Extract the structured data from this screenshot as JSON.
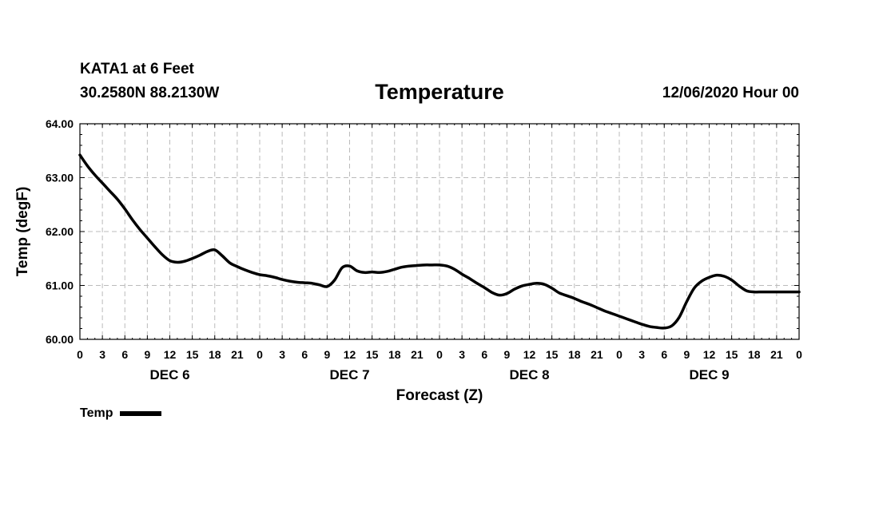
{
  "header": {
    "station": "KATA1 at 6 Feet",
    "coords": "30.2580N 88.2130W",
    "title": "Temperature",
    "run": "12/06/2020 Hour 00"
  },
  "colors": {
    "series": "#000000",
    "grid": "#bbbbbb"
  },
  "chart_data": {
    "type": "line",
    "title": "Temperature",
    "xlabel": "Forecast (Z)",
    "ylabel": "Temp (degF)",
    "ylim": [
      60.0,
      64.0
    ],
    "xlim": [
      0,
      96
    ],
    "x_units": "forecast hours",
    "yticks": [
      "60.00",
      "61.00",
      "62.00",
      "63.00",
      "64.00"
    ],
    "xticks": [
      "0",
      "3",
      "6",
      "9",
      "12",
      "15",
      "18",
      "21",
      "0",
      "3",
      "6",
      "9",
      "12",
      "15",
      "18",
      "21",
      "0",
      "3",
      "6",
      "9",
      "12",
      "15",
      "18",
      "21",
      "0",
      "3",
      "6",
      "9",
      "12",
      "15",
      "18",
      "21",
      "0"
    ],
    "day_labels": [
      {
        "label": "DEC 6",
        "hour": 12
      },
      {
        "label": "DEC 7",
        "hour": 36
      },
      {
        "label": "DEC 8",
        "hour": 60
      },
      {
        "label": "DEC 9",
        "hour": 84
      }
    ],
    "grid": true,
    "legend": "bottom-left",
    "series": [
      {
        "name": "Temp",
        "x": [
          0,
          1,
          2,
          3,
          4,
          5,
          6,
          7,
          8,
          9,
          10,
          11,
          12,
          13,
          14,
          15,
          16,
          17,
          18,
          19,
          20,
          21,
          22,
          23,
          24,
          25,
          26,
          27,
          28,
          29,
          30,
          31,
          32,
          33,
          34,
          35,
          36,
          37,
          38,
          39,
          40,
          41,
          42,
          43,
          44,
          45,
          46,
          47,
          48,
          49,
          50,
          51,
          52,
          53,
          54,
          55,
          56,
          57,
          58,
          59,
          60,
          61,
          62,
          63,
          64,
          65,
          66,
          67,
          68,
          69,
          70,
          71,
          72,
          73,
          74,
          75,
          76,
          77,
          78,
          79,
          80,
          81,
          82,
          83,
          84,
          85,
          86,
          87,
          88,
          89,
          90,
          91,
          92,
          93,
          94,
          95,
          96
        ],
        "values": [
          63.42,
          63.22,
          63.05,
          62.9,
          62.75,
          62.6,
          62.42,
          62.22,
          62.04,
          61.88,
          61.72,
          61.57,
          61.46,
          61.43,
          61.45,
          61.5,
          61.56,
          61.63,
          61.66,
          61.55,
          61.42,
          61.35,
          61.29,
          61.24,
          61.2,
          61.18,
          61.15,
          61.11,
          61.08,
          61.06,
          61.05,
          61.04,
          61.01,
          60.98,
          61.1,
          61.33,
          61.36,
          61.27,
          61.24,
          61.25,
          61.24,
          61.26,
          61.3,
          61.34,
          61.36,
          61.37,
          61.38,
          61.38,
          61.38,
          61.36,
          61.3,
          61.21,
          61.13,
          61.04,
          60.96,
          60.87,
          60.82,
          60.85,
          60.93,
          60.99,
          61.02,
          61.04,
          61.02,
          60.95,
          60.86,
          60.81,
          60.76,
          60.7,
          60.65,
          60.59,
          60.53,
          60.48,
          60.43,
          60.38,
          60.33,
          60.28,
          60.24,
          60.22,
          60.21,
          60.25,
          60.41,
          60.7,
          60.95,
          61.08,
          61.15,
          61.19,
          61.17,
          61.1,
          60.99,
          60.9,
          60.88,
          60.88,
          60.88,
          60.88,
          60.88,
          60.88,
          60.88
        ]
      }
    ]
  },
  "legend": {
    "label": "Temp"
  }
}
